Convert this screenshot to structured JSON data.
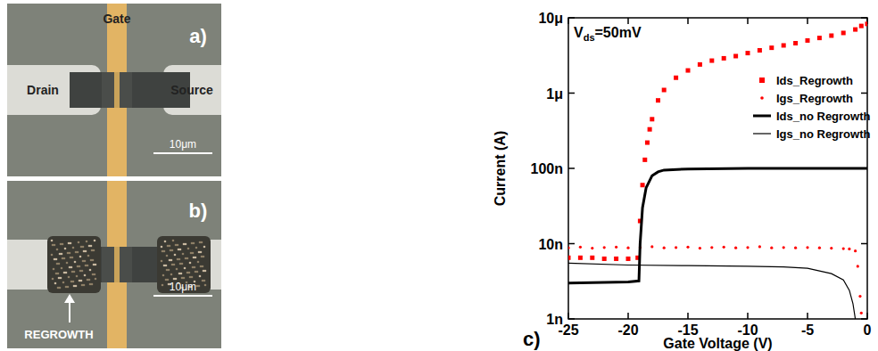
{
  "chart_data": {
    "type": "scatter",
    "panel_label": "c)",
    "x_label": "Gate Voltage (V)",
    "y_label": "Current (A)",
    "annotation": {
      "main": "V",
      "sub": "ds",
      "tail": "=50mV"
    },
    "log": "y",
    "legend": "right",
    "xlim": [
      -25,
      0
    ],
    "xticks": [
      -25,
      -20,
      -15,
      -10,
      -5,
      0
    ],
    "ylim": [
      1e-09,
      1e-05
    ],
    "yticks": [
      {
        "value": 1e-09,
        "label": "1n"
      },
      {
        "value": 1e-08,
        "label": "10n"
      },
      {
        "value": 1e-07,
        "label": "100n"
      },
      {
        "value": 1e-06,
        "label": "1μ"
      },
      {
        "value": 1e-05,
        "label": "10μ"
      }
    ],
    "series": [
      {
        "name": "Ids_Regrowth",
        "type": "scatter",
        "marker": "square",
        "color": "#ff0000",
        "x": [
          -25,
          -24,
          -23,
          -22,
          -21,
          -20,
          -19.2,
          -19,
          -18.8,
          -18.6,
          -18.4,
          -18.2,
          -18,
          -17.5,
          -17,
          -16,
          -15,
          -14,
          -13,
          -12,
          -11,
          -10,
          -9,
          -8,
          -7,
          -6,
          -5,
          -4,
          -3,
          -2,
          -1,
          -0.5,
          0
        ],
        "values": [
          6.5e-09,
          6.5e-09,
          6.5e-09,
          6.3e-09,
          6.3e-09,
          6.3e-09,
          6.5e-09,
          2e-08,
          6e-08,
          1.3e-07,
          2.2e-07,
          3.3e-07,
          4.5e-07,
          8e-07,
          1.1e-06,
          1.6e-06,
          2e-06,
          2.4e-06,
          2.7e-06,
          2.9e-06,
          3.1e-06,
          3.4e-06,
          3.7e-06,
          4e-06,
          4.3e-06,
          4.6e-06,
          5e-06,
          5.4e-06,
          5.8e-06,
          6.3e-06,
          7e-06,
          7.8e-06,
          8.3e-06
        ]
      },
      {
        "name": "Igs_Regrowth",
        "type": "scatter",
        "marker": "dot",
        "color": "#ff0000",
        "x": [
          -25,
          -24,
          -23,
          -22,
          -21,
          -20,
          -19,
          -18,
          -17,
          -16,
          -15,
          -14,
          -13,
          -12,
          -11,
          -10,
          -9,
          -8,
          -7,
          -6,
          -5,
          -4,
          -3,
          -2,
          -1.5,
          -1,
          -0.8,
          -0.6,
          -0.5
        ],
        "values": [
          8.8e-09,
          9e-09,
          8.7e-09,
          8.9e-09,
          9e-09,
          8.8e-09,
          8.9e-09,
          9.1e-09,
          8.8e-09,
          8.9e-09,
          9e-09,
          8.7e-09,
          8.9e-09,
          9e-09,
          8.8e-09,
          8.9e-09,
          9.1e-09,
          8.8e-09,
          8.9e-09,
          8.8e-09,
          8.9e-09,
          8.8e-09,
          8.7e-09,
          8.6e-09,
          8.5e-09,
          8e-09,
          5e-09,
          2e-09,
          1.2e-09
        ]
      },
      {
        "name": "Ids_no Regrowth",
        "type": "line",
        "line_style": "solid",
        "color": "#000000",
        "x": [
          -25,
          -20,
          -19.1,
          -19,
          -18.8,
          -18.5,
          -18,
          -17.5,
          -17,
          -15,
          -10,
          -5,
          0
        ],
        "values": [
          3e-09,
          3.1e-09,
          3.2e-09,
          1e-08,
          3e-08,
          5.5e-08,
          8e-08,
          9e-08,
          9.5e-08,
          9.8e-08,
          1e-07,
          1e-07,
          1e-07
        ]
      },
      {
        "name": "Igs_no Regrowth",
        "type": "line",
        "line_style": "solid",
        "color": "#000000",
        "x": [
          -25,
          -20,
          -15,
          -10,
          -7,
          -5,
          -3,
          -2,
          -1.5,
          -1.2,
          -1
        ],
        "values": [
          5.5e-09,
          5.2e-09,
          5.1e-09,
          5e-09,
          4.9e-09,
          4.7e-09,
          4e-09,
          3.3e-09,
          2.4e-09,
          1.6e-09,
          1e-09
        ]
      }
    ]
  },
  "micrographs": [
    {
      "label": "a)",
      "gate_label": "Gate",
      "drain_label": "Drain",
      "source_label": "Source",
      "scale_bar": "10μm"
    },
    {
      "label": "b)",
      "annotation": "REGROWTH",
      "scale_bar": "10μm"
    }
  ]
}
